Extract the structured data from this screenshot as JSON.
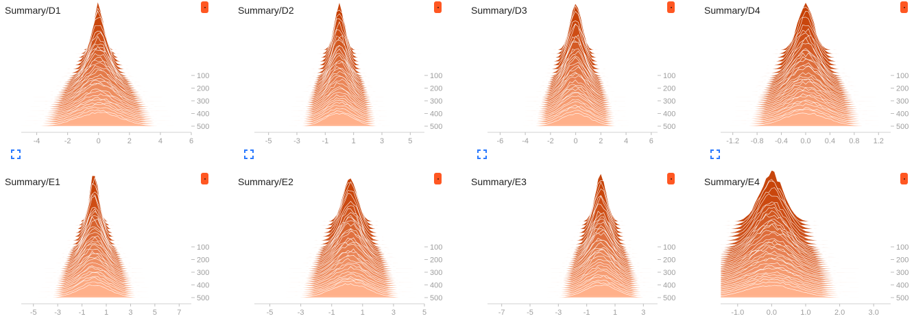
{
  "chart_data": [
    {
      "type": "histogram",
      "title": "Summary/D1",
      "x_ticks": [
        "-4",
        "-2",
        "0",
        "2",
        "4",
        "6"
      ],
      "x_tick_values": [
        -4,
        -2,
        0,
        2,
        4,
        6
      ],
      "xlim": [
        -5.0,
        6.0
      ],
      "y_ticks": [
        "100",
        "200",
        "300",
        "400",
        "500"
      ],
      "y_tick_values": [
        100,
        200,
        300,
        400,
        500
      ],
      "step_range": [
        0,
        500
      ],
      "center": 0.0,
      "peak_sigma": 0.3,
      "base_sigma": 1.4,
      "expand_button": true
    },
    {
      "type": "histogram",
      "title": "Summary/D2",
      "x_ticks": [
        "-5",
        "-3",
        "-1",
        "1",
        "3",
        "5"
      ],
      "x_tick_values": [
        -5,
        -3,
        -1,
        1,
        3,
        5
      ],
      "xlim": [
        -6.0,
        6.0
      ],
      "y_ticks": [
        "100",
        "200",
        "300",
        "400",
        "500"
      ],
      "y_tick_values": [
        100,
        200,
        300,
        400,
        500
      ],
      "step_range": [
        0,
        500
      ],
      "center": 0.0,
      "peak_sigma": 0.35,
      "base_sigma": 1.0,
      "expand_button": true
    },
    {
      "type": "histogram",
      "title": "Summary/D3",
      "x_ticks": [
        "-6",
        "-4",
        "-2",
        "0",
        "2",
        "4",
        "6"
      ],
      "x_tick_values": [
        -6,
        -4,
        -2,
        0,
        2,
        4,
        6
      ],
      "xlim": [
        -7.0,
        6.5
      ],
      "y_ticks": [
        "100",
        "200",
        "300",
        "400",
        "500"
      ],
      "y_tick_values": [
        100,
        200,
        300,
        400,
        500
      ],
      "step_range": [
        0,
        500
      ],
      "center": 0.0,
      "peak_sigma": 0.45,
      "base_sigma": 1.2,
      "expand_button": true
    },
    {
      "type": "histogram",
      "title": "Summary/D4",
      "x_ticks": [
        "-1.2",
        "-0.8",
        "-0.4",
        "0.0",
        "0.4",
        "0.8",
        "1.2"
      ],
      "x_tick_values": [
        -1.2,
        -0.8,
        -0.4,
        0.0,
        0.4,
        0.8,
        1.2
      ],
      "xlim": [
        -1.4,
        1.4
      ],
      "y_ticks": [
        "100",
        "200",
        "300",
        "400",
        "500"
      ],
      "y_tick_values": [
        100,
        200,
        300,
        400,
        500
      ],
      "step_range": [
        0,
        500
      ],
      "center": 0.0,
      "peak_sigma": 0.13,
      "base_sigma": 0.35,
      "expand_button": true
    },
    {
      "type": "histogram",
      "title": "Summary/E1",
      "x_ticks": [
        "-5",
        "-3",
        "-1",
        "1",
        "3",
        "5",
        "7"
      ],
      "x_tick_values": [
        -5,
        -3,
        -1,
        1,
        3,
        5,
        7
      ],
      "xlim": [
        -6.0,
        8.0
      ],
      "y_ticks": [
        "100",
        "200",
        "300",
        "400",
        "500"
      ],
      "y_tick_values": [
        100,
        200,
        300,
        400,
        500
      ],
      "step_range": [
        0,
        500
      ],
      "center": 0.0,
      "peak_sigma": 0.35,
      "base_sigma": 1.3,
      "expand_button": false
    },
    {
      "type": "histogram",
      "title": "Summary/E2",
      "x_ticks": [
        "-5",
        "-3",
        "-1",
        "1",
        "3",
        "5"
      ],
      "x_tick_values": [
        -5,
        -3,
        -1,
        1,
        3,
        5
      ],
      "xlim": [
        -6.0,
        5.0
      ],
      "y_ticks": [
        "100",
        "200",
        "300",
        "400",
        "500"
      ],
      "y_tick_values": [
        100,
        200,
        300,
        400,
        500
      ],
      "step_range": [
        0,
        500
      ],
      "center": 0.2,
      "peak_sigma": 0.45,
      "base_sigma": 1.2,
      "expand_button": false
    },
    {
      "type": "histogram",
      "title": "Summary/E3",
      "x_ticks": [
        "-7",
        "-5",
        "-3",
        "-1",
        "1",
        "3"
      ],
      "x_tick_values": [
        -7,
        -5,
        -3,
        -1,
        1,
        3
      ],
      "xlim": [
        -8.0,
        4.0
      ],
      "y_ticks": [
        "100",
        "200",
        "300",
        "400",
        "500"
      ],
      "y_tick_values": [
        100,
        200,
        300,
        400,
        500
      ],
      "step_range": [
        0,
        500
      ],
      "center": 0.0,
      "peak_sigma": 0.4,
      "base_sigma": 1.1,
      "expand_button": false
    },
    {
      "type": "histogram",
      "title": "Summary/E4",
      "x_ticks": [
        "-1.0",
        "0.0",
        "1.0",
        "2.0",
        "3.0"
      ],
      "x_tick_values": [
        -1.0,
        0.0,
        1.0,
        2.0,
        3.0
      ],
      "xlim": [
        -1.5,
        3.5
      ],
      "y_ticks": [
        "100",
        "200",
        "300",
        "400",
        "500"
      ],
      "y_tick_values": [
        100,
        200,
        300,
        400,
        500
      ],
      "step_range": [
        0,
        500
      ],
      "center": 0.0,
      "peak_sigma": 0.35,
      "base_sigma": 0.75,
      "expand_button": false
    }
  ],
  "colors": {
    "accent": "#ff5722",
    "ridge_dark": "#c43c00",
    "ridge_light": "#ffb08a",
    "baseline": "#ececec",
    "expand_icon": "#2979ff"
  }
}
